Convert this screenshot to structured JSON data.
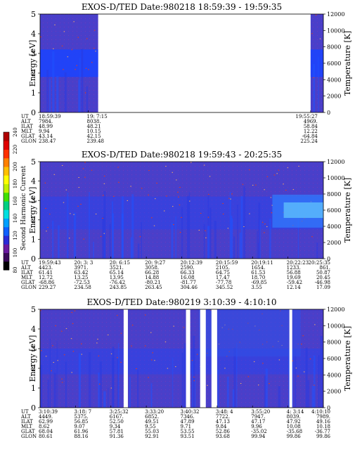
{
  "figure": {
    "colorbar": {
      "label": "Second Harmonic Current",
      "ticks": [
        "80",
        "100",
        "120",
        "140",
        "160",
        "180",
        "200",
        "220",
        "240"
      ],
      "colors": [
        "#000000",
        "#3a0a5a",
        "#6a1aa0",
        "#2b2bd8",
        "#1060ff",
        "#00a0ff",
        "#00e0e0",
        "#00d080",
        "#40e000",
        "#c0f000",
        "#ffff00",
        "#ffc000",
        "#ff8000",
        "#ff3000",
        "#e00000",
        "#b00000"
      ]
    },
    "colors": {
      "background": "#4a3fc9",
      "band": "#1a44ff",
      "speck_hot": "#ff3a00",
      "speck_warm": "#ffb060"
    },
    "ephem_labels": [
      "UT",
      "ALT",
      "ILAT",
      "MLT",
      "GLAT",
      "GLON"
    ]
  },
  "chart_data": [
    {
      "type": "heatmap",
      "title": "EXOS-D/TED   Date:980218   18:59:39 - 19:59:35",
      "ylabel": "Energy [eV]",
      "y2label": "Temperature [K]",
      "ylim": [
        0,
        5
      ],
      "yticks": [
        "0",
        "1",
        "2",
        "3",
        "4",
        "5"
      ],
      "y2lim": [
        0,
        12000
      ],
      "y2ticks": [
        "0",
        "2000",
        "4000",
        "6000",
        "8000",
        "10000",
        "12000"
      ],
      "x_columns": [
        {
          "UT": "18:59:39",
          "ALT": "7984.",
          "ILAT": "48.99",
          "MLT": "9.94",
          "GLAT": "43.14",
          "GLON": "238.47"
        },
        {
          "UT": "19: 7:15",
          "ALT": "8038.",
          "ILAT": "48.21",
          "MLT": "10.15",
          "GLAT": "42.15",
          "GLON": "239.48"
        },
        {
          "UT": "19:55:27",
          "ALT": "4969.",
          "ILAT": "58.84",
          "MLT": "12.22",
          "GLAT": "-64.84",
          "GLON": "225.24"
        }
      ],
      "data_segments": [
        {
          "from": 0.0,
          "to": 0.205
        },
        {
          "from": 0.955,
          "to": 1.0
        }
      ],
      "band_energy_eV": [
        1.8,
        3.2
      ]
    },
    {
      "type": "heatmap",
      "title": "EXOS-D/TED   Date:980218   19:59:43 - 20:25:35",
      "ylabel": "Energy [eV]",
      "y2label": "Temperature [K]",
      "ylim": [
        0,
        5
      ],
      "yticks": [
        "0",
        "1",
        "2",
        "3",
        "4",
        "5"
      ],
      "y2lim": [
        0,
        12000
      ],
      "y2ticks": [
        "0",
        "2000",
        "4000",
        "6000",
        "8000",
        "10000",
        "12000"
      ],
      "x_columns": [
        {
          "UT": "19:59:43",
          "ALT": "4423.",
          "ILAT": "61.41",
          "MLT": "12.72",
          "GLAT": "-68.86",
          "GLON": "229.27"
        },
        {
          "UT": "20: 3: 3",
          "ALT": "3971.",
          "ILAT": "63.42",
          "MLT": "13.25",
          "GLAT": "-72.53",
          "GLON": "234.58"
        },
        {
          "UT": "20: 6:15",
          "ALT": "3521.",
          "ILAT": "65.14",
          "MLT": "13.95",
          "GLAT": "-76.42",
          "GLON": "243.85"
        },
        {
          "UT": "20: 9:27",
          "ALT": "3058.",
          "ILAT": "66.28",
          "MLT": "14.88",
          "GLAT": "-80.21",
          "GLON": "263.45"
        },
        {
          "UT": "20:12:39",
          "ALT": "2590.",
          "ILAT": "66.33",
          "MLT": "16.08",
          "GLAT": "-81.77",
          "GLON": "304.46"
        },
        {
          "UT": "20:15:59",
          "ALT": "2105.",
          "ILAT": "64.75",
          "MLT": "17.47",
          "GLAT": "-77.78",
          "GLON": "345.52"
        },
        {
          "UT": "20:19:11",
          "ALT": "1654.",
          "ILAT": "61.53",
          "MLT": "18.70",
          "GLAT": "-69.85",
          "GLON": "3.55"
        },
        {
          "UT": "20:22:23",
          "ALT": "1233.",
          "ILAT": "56.88",
          "MLT": "19.69",
          "GLAT": "-59.42",
          "GLON": "12.14"
        },
        {
          "UT": "20:25:35",
          "ALT": "861.",
          "ILAT": "50.87",
          "MLT": "20.45",
          "GLAT": "-46.98",
          "GLON": "17.09"
        }
      ],
      "data_segments": [
        {
          "from": 0.0,
          "to": 1.0
        }
      ],
      "band_energy_eV": [
        1.5,
        3.2
      ]
    },
    {
      "type": "heatmap",
      "title": "EXOS-D/TED   Date:980219   3:10:39 - 4:10:10",
      "ylabel": "Energy [eV]",
      "y2label": "Temperature [K]",
      "ylim": [
        0,
        5
      ],
      "yticks": [
        "0",
        "1",
        "2",
        "3",
        "4",
        "5"
      ],
      "y2lim": [
        0,
        12000
      ],
      "y2ticks": [
        "0",
        "2000",
        "4000",
        "6000",
        "8000",
        "10000",
        "12000"
      ],
      "x_columns": [
        {
          "UT": "3:10:39",
          "ALT": "4449.",
          "ILAT": "62.99",
          "MLT": "8.62",
          "GLAT": "68.04",
          "GLON": "80.61"
        },
        {
          "UT": "3:18: 7",
          "ALT": "5375.",
          "ILAT": "56.85",
          "MLT": "9.07",
          "GLAT": "61.96",
          "GLON": "88.16"
        },
        {
          "UT": "3:25:32",
          "ALT": "6167.",
          "ILAT": "52.50",
          "MLT": "9.34",
          "GLAT": "57.81",
          "GLON": "91.36"
        },
        {
          "UT": "3:33:20",
          "ALT": "6852.",
          "ILAT": "49.51",
          "MLT": "9.55",
          "GLAT": "55.03",
          "GLON": "92.91"
        },
        {
          "UT": "3:40:32",
          "ALT": "7346.",
          "ILAT": "47.89",
          "MLT": "9.71",
          "GLAT": "53.55",
          "GLON": "93.51"
        },
        {
          "UT": "3:48: 4",
          "ALT": "7722.",
          "ILAT": "47.13",
          "MLT": "9.84",
          "GLAT": "52.86",
          "GLON": "93.68"
        },
        {
          "UT": "3:55:20",
          "ALT": "7947.",
          "ILAT": "47.17",
          "MLT": "9.96",
          "GLAT": "-35.02",
          "GLON": "99.94"
        },
        {
          "UT": "4: 3:14",
          "ALT": "8039.",
          "ILAT": "47.92",
          "MLT": "10.08",
          "GLAT": "-35.68",
          "GLON": "99.86"
        },
        {
          "UT": "4:10:10",
          "ALT": "7989.",
          "ILAT": "49.16",
          "MLT": "10.18",
          "GLAT": "-36.77",
          "GLON": "99.86"
        }
      ],
      "data_segments": [
        {
          "from": 0.0,
          "to": 1.0
        }
      ],
      "gaps": [
        [
          0.295,
          0.31
        ],
        [
          0.515,
          0.53
        ],
        [
          0.565,
          0.585
        ],
        [
          0.605,
          0.625
        ],
        [
          0.88,
          0.89
        ]
      ],
      "band_energy_eV": [
        1.7,
        3.0
      ]
    }
  ]
}
